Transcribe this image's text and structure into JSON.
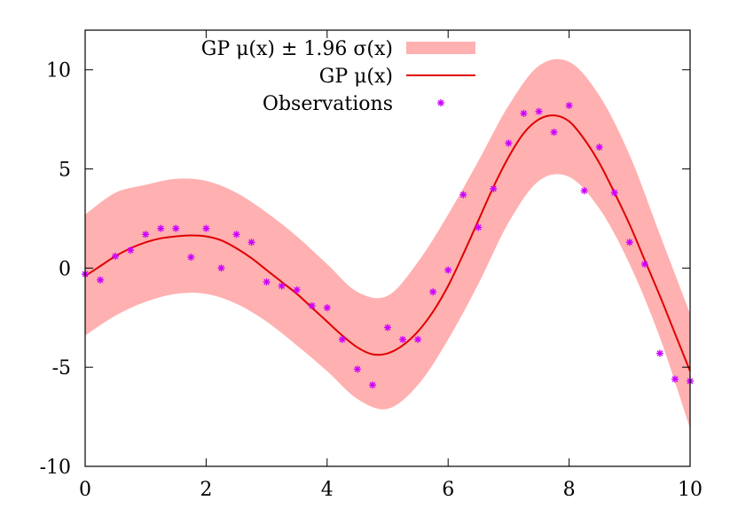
{
  "chart_data": {
    "type": "line",
    "title": "",
    "xlabel": "",
    "ylabel": "",
    "xlim": [
      0,
      10
    ],
    "ylim": [
      -10,
      12
    ],
    "xticks": [
      0,
      2,
      4,
      6,
      8,
      10
    ],
    "yticks": [
      -10,
      -5,
      0,
      5,
      10
    ],
    "grid": false,
    "legend": "top-right",
    "legend_entries": [
      "GP μ(x) ± 1.96 σ(x)",
      "GP μ(x)",
      "Observations"
    ],
    "colors": {
      "band": "#ffb0b0",
      "mean": "#e00000",
      "points": "#cc00ff"
    },
    "series": [
      {
        "name": "GP μ(x) ± 1.96 σ(x)",
        "kind": "band",
        "x": [
          0,
          0.5,
          1,
          1.5,
          2,
          2.5,
          3,
          3.5,
          4,
          4.5,
          5,
          5.5,
          6,
          6.5,
          7,
          7.5,
          8,
          8.5,
          9,
          9.5,
          10
        ],
        "lower": [
          -3.4,
          -2.4,
          -1.7,
          -1.3,
          -1.3,
          -1.8,
          -2.7,
          -3.9,
          -5.2,
          -6.6,
          -7.1,
          -5.9,
          -3.6,
          -0.8,
          2.3,
          4.4,
          4.6,
          3.0,
          0.2,
          -3.5,
          -8.1
        ],
        "upper": [
          2.7,
          3.8,
          4.2,
          4.5,
          4.4,
          3.8,
          2.8,
          1.6,
          0.2,
          -1.2,
          -1.4,
          0.3,
          2.7,
          5.4,
          8.2,
          10.2,
          10.4,
          8.7,
          5.7,
          1.7,
          -2.3
        ]
      },
      {
        "name": "GP μ(x)",
        "kind": "line",
        "x": [
          0,
          0.25,
          0.5,
          0.75,
          1,
          1.25,
          1.5,
          1.75,
          2,
          2.25,
          2.5,
          2.75,
          3,
          3.25,
          3.5,
          3.75,
          4,
          4.25,
          4.5,
          4.75,
          5,
          5.25,
          5.5,
          5.75,
          6,
          6.25,
          6.5,
          6.75,
          7,
          7.25,
          7.5,
          7.75,
          8,
          8.25,
          8.5,
          8.75,
          9,
          9.25,
          9.5,
          9.75,
          10
        ],
        "y": [
          -0.4,
          0.1,
          0.6,
          1.0,
          1.3,
          1.5,
          1.6,
          1.65,
          1.6,
          1.4,
          1.0,
          0.5,
          -0.1,
          -0.7,
          -1.3,
          -2.0,
          -2.7,
          -3.4,
          -4.0,
          -4.35,
          -4.3,
          -3.9,
          -3.2,
          -2.2,
          -0.9,
          0.7,
          2.4,
          4.1,
          5.6,
          6.8,
          7.5,
          7.7,
          7.4,
          6.5,
          5.3,
          3.8,
          2.2,
          0.4,
          -1.4,
          -3.3,
          -5.2
        ]
      },
      {
        "name": "Observations",
        "kind": "scatter",
        "x": [
          0,
          0.25,
          0.5,
          0.75,
          1,
          1.25,
          1.5,
          1.75,
          2,
          2.25,
          2.5,
          2.75,
          3,
          3.25,
          3.5,
          3.75,
          4,
          4.25,
          4.5,
          4.75,
          5,
          5.25,
          5.5,
          5.75,
          6,
          6.25,
          6.5,
          6.75,
          7,
          7.25,
          7.5,
          7.75,
          8,
          8.25,
          8.5,
          8.75,
          9,
          9.25,
          9.5,
          9.75,
          10
        ],
        "y": [
          -0.3,
          -0.6,
          0.6,
          0.9,
          1.7,
          2.0,
          2.0,
          0.55,
          2.0,
          0.0,
          1.7,
          1.3,
          -0.7,
          -0.9,
          -1.1,
          -1.9,
          -2.0,
          -3.6,
          -5.1,
          -5.9,
          -3.0,
          -3.6,
          -3.6,
          -1.2,
          -0.1,
          3.7,
          2.05,
          4.0,
          6.3,
          7.8,
          7.9,
          6.85,
          8.2,
          3.9,
          6.1,
          3.8,
          1.3,
          0.2,
          -4.3,
          -5.6,
          -5.7
        ]
      }
    ]
  }
}
